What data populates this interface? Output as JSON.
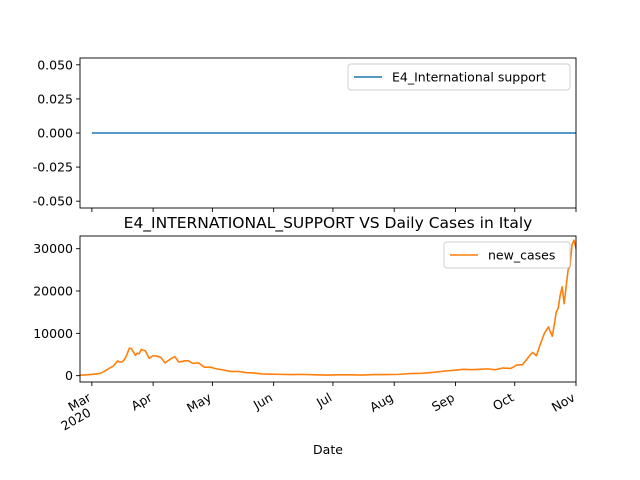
{
  "chart_data": [
    {
      "type": "line",
      "title": "",
      "xlabel": "",
      "ylabel": "",
      "ylim": [
        -0.055,
        0.055
      ],
      "yticks": [
        "0.050",
        "0.025",
        "0.000",
        "-0.025",
        "-0.050"
      ],
      "ytick_values": [
        0.05,
        0.025,
        0.0,
        -0.025,
        -0.05
      ],
      "grid": false,
      "legend_position": "top-right",
      "colors": {
        "series": "#1f77b4"
      },
      "series": [
        {
          "name": "E4_International support",
          "x": [
            "2020-03-01",
            "2020-11-01"
          ],
          "values": [
            0,
            0
          ]
        }
      ]
    },
    {
      "type": "line",
      "title": "E4_INTERNATIONAL_SUPPORT VS Daily Cases in Italy",
      "xlabel": "Date",
      "ylabel": "",
      "ylim": [
        -1500,
        33000
      ],
      "yticks": [
        "0",
        "10000",
        "20000",
        "30000"
      ],
      "ytick_values": [
        0,
        10000,
        20000,
        30000
      ],
      "xlim": [
        "2020-02-24",
        "2020-11-01"
      ],
      "xticks": [
        {
          "date": "2020-03-01",
          "label": "Mar",
          "sublabel": "2020"
        },
        {
          "date": "2020-04-01",
          "label": "Apr",
          "sublabel": ""
        },
        {
          "date": "2020-05-01",
          "label": "May",
          "sublabel": ""
        },
        {
          "date": "2020-06-01",
          "label": "Jun",
          "sublabel": ""
        },
        {
          "date": "2020-07-01",
          "label": "Jul",
          "sublabel": ""
        },
        {
          "date": "2020-08-01",
          "label": "Aug",
          "sublabel": ""
        },
        {
          "date": "2020-09-01",
          "label": "Sep",
          "sublabel": ""
        },
        {
          "date": "2020-10-01",
          "label": "Oct",
          "sublabel": ""
        },
        {
          "date": "2020-11-01",
          "label": "Nov",
          "sublabel": ""
        }
      ],
      "grid": false,
      "legend_position": "top-right",
      "colors": {
        "series": "#ff7f0e"
      },
      "series": [
        {
          "name": "new_cases",
          "x": [
            "2020-02-24",
            "2020-02-28",
            "2020-03-02",
            "2020-03-05",
            "2020-03-08",
            "2020-03-10",
            "2020-03-12",
            "2020-03-14",
            "2020-03-15",
            "2020-03-16",
            "2020-03-17",
            "2020-03-18",
            "2020-03-19",
            "2020-03-20",
            "2020-03-21",
            "2020-03-22",
            "2020-03-23",
            "2020-03-24",
            "2020-03-25",
            "2020-03-26",
            "2020-03-27",
            "2020-03-28",
            "2020-03-30",
            "2020-04-01",
            "2020-04-03",
            "2020-04-05",
            "2020-04-07",
            "2020-04-10",
            "2020-04-12",
            "2020-04-14",
            "2020-04-17",
            "2020-04-19",
            "2020-04-21",
            "2020-04-24",
            "2020-04-27",
            "2020-04-30",
            "2020-05-03",
            "2020-05-06",
            "2020-05-10",
            "2020-05-14",
            "2020-05-18",
            "2020-05-22",
            "2020-05-26",
            "2020-05-31",
            "2020-06-05",
            "2020-06-10",
            "2020-06-16",
            "2020-06-22",
            "2020-06-28",
            "2020-07-04",
            "2020-07-10",
            "2020-07-16",
            "2020-07-22",
            "2020-07-28",
            "2020-08-03",
            "2020-08-09",
            "2020-08-15",
            "2020-08-21",
            "2020-08-27",
            "2020-09-01",
            "2020-09-05",
            "2020-09-09",
            "2020-09-13",
            "2020-09-17",
            "2020-09-21",
            "2020-09-25",
            "2020-09-29",
            "2020-10-02",
            "2020-10-05",
            "2020-10-08",
            "2020-10-10",
            "2020-10-12",
            "2020-10-14",
            "2020-10-16",
            "2020-10-18",
            "2020-10-20",
            "2020-10-21",
            "2020-10-22",
            "2020-10-23",
            "2020-10-24",
            "2020-10-25",
            "2020-10-26",
            "2020-10-27",
            "2020-10-28",
            "2020-10-29",
            "2020-10-30",
            "2020-10-31",
            "2020-11-01"
          ],
          "values": [
            100,
            200,
            350,
            500,
            1200,
            1800,
            2300,
            3500,
            3200,
            3200,
            3500,
            4200,
            5300,
            6500,
            6400,
            5600,
            4800,
            5300,
            5200,
            6200,
            6000,
            5900,
            4100,
            4700,
            4600,
            4300,
            3000,
            4000,
            4500,
            3200,
            3500,
            3500,
            2900,
            3000,
            2000,
            2000,
            1600,
            1400,
            1000,
            1000,
            700,
            650,
            400,
            350,
            300,
            250,
            300,
            200,
            150,
            200,
            200,
            150,
            250,
            250,
            300,
            500,
            550,
            800,
            1100,
            1300,
            1500,
            1400,
            1500,
            1600,
            1400,
            1800,
            1700,
            2500,
            2600,
            4400,
            5500,
            4700,
            7500,
            10000,
            11500,
            9300,
            12000,
            15000,
            16000,
            19000,
            21000,
            17000,
            21000,
            25000,
            26000,
            31000,
            32000,
            30000
          ]
        }
      ]
    }
  ]
}
